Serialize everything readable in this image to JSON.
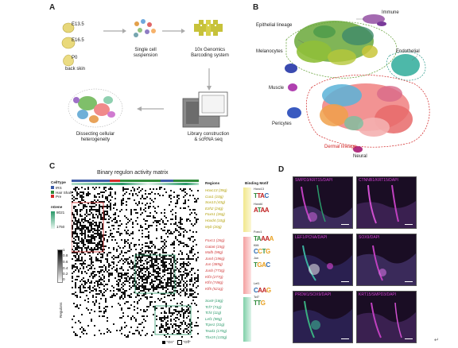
{
  "panels": {
    "a": "A",
    "b": "B",
    "c": "C",
    "d": "D"
  },
  "panelA": {
    "stages": [
      "E13.5",
      "E16.5",
      "P0"
    ],
    "skin_label": "back skin",
    "suspension": "Single cell\nsuspension",
    "genomics": "10x Genomics\nBarcoding system",
    "library": "Library construction\n& scRNA seq",
    "dissect": "Dissecting cellular\nheterogeneity"
  },
  "panelB": {
    "labels": {
      "immune": "Immune",
      "epithelial": "Epithelial lineage",
      "endothelial": "Endothelial",
      "melanocytes": "Melanocytes",
      "muscle": "Muscle",
      "pericytes": "Pericytes",
      "dermal": "Dermal lineage",
      "neural": "Neural"
    },
    "colors": {
      "immune": "#8a3a8a",
      "epithelial": "#5a9a2a",
      "endothelial": "#2a9a8a",
      "melanocytes": "#3a4ab0",
      "muscle": "#b040b0",
      "pericytes": "#3a5ac0",
      "dermal": "#d02020",
      "neural": "#b03080"
    }
  },
  "panelC": {
    "title": "Binary regulon activity matrix",
    "celltype_title": "CellType",
    "celltypes": [
      {
        "name": "IRS",
        "color": "#3b5ba6"
      },
      {
        "name": "Hair Shaft",
        "color": "#2e8b3a"
      },
      {
        "name": "Pre",
        "color": "#d22a2a"
      }
    ],
    "ngene_title": "nGene",
    "ngene_ticks": [
      "8021",
      "1750"
    ],
    "scale_ticks": [
      "1",
      "0.8",
      "0.6",
      "0.4",
      "0.2",
      "0"
    ],
    "regulons_axis": "Regulons",
    "regions_title": "Regions",
    "motif_title": "Binding Motif",
    "legend_on": "\"On\"",
    "legend_off": "\"Off\"",
    "groups": [
      {
        "color": "#b3a10a",
        "items": [
          "Hoxc13 (39g)",
          "Cux1 (10g)",
          "Sox13 (43g)",
          "Ezh2 (24g)",
          "Foxn1 (26g)",
          "Hoxd4 (10g)",
          "Myb (20g)"
        ]
      },
      {
        "color": "#d23c3c",
        "items": [
          "Foxc1 (26g)",
          "Gata6 (15g)",
          "Mafb (98g)",
          "Jund (196g)",
          "Jun (389g)",
          "Junb (773g)",
          "Klf3 (277g)",
          "Klf4 (748g)",
          "Klf5 (521g)"
        ]
      },
      {
        "color": "#2a9a6a",
        "items": [
          "Sox9 (18g)",
          "Tcf7 (71g)",
          "Tcf4 (11g)",
          "Lef1 (98g)",
          "Tcpe1 (31g)",
          "Tead1 (170g)",
          "Tbx15 (133g)"
        ]
      }
    ],
    "motif_labels": [
      "Hoxc13",
      "Hoxd4",
      "Foxc1",
      "Klf4",
      "Jun",
      "Lef1",
      "Tcf7"
    ]
  },
  "panelD": {
    "images": [
      {
        "label": "SMPD3/KRT15/DAPI",
        "accent": "#d040d0"
      },
      {
        "label": "CTNNB1/KRT15/DAPI",
        "accent": "#c040c0"
      },
      {
        "label": "LEF1/PCNA/DAPI",
        "accent": "#d040d0"
      },
      {
        "label": "SOX9/DAPI",
        "accent": "#c040c0"
      },
      {
        "label": "PRDM1/SOX9/DAPI",
        "accent": "#d040d0"
      },
      {
        "label": "KRT15/SMPD3/DAPI",
        "accent": "#c040c0"
      }
    ]
  },
  "corner_mark": "↵"
}
